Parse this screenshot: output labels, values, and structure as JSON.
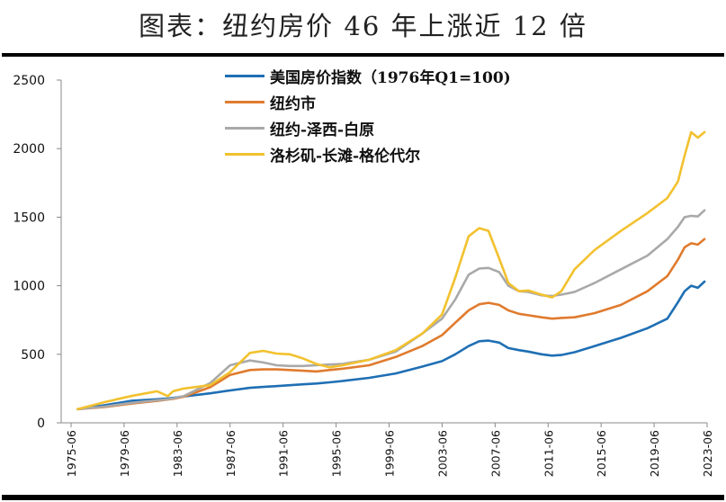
{
  "chart_data": {
    "type": "line",
    "title": "图表：纽约房价 46 年上涨近 12 倍",
    "xlabel": "",
    "ylabel": "",
    "ylim": [
      0,
      2500
    ],
    "yticks": [
      "0",
      "500",
      "1000",
      "1500",
      "2000",
      "2500"
    ],
    "xticks": [
      "1975-06",
      "1979-06",
      "1983-06",
      "1987-06",
      "1991-06",
      "1995-06",
      "1999-06",
      "2003-06",
      "2007-06",
      "2011-06",
      "2015-06",
      "2019-06",
      "2023-06"
    ],
    "xlim": [
      1975.5,
      2023.5
    ],
    "grid": false,
    "legend_position": "top-center",
    "x": [
      1976.0,
      1978.0,
      1980.0,
      1982.0,
      1982.8,
      1983.2,
      1984.0,
      1986.0,
      1987.5,
      1989.0,
      1990.0,
      1991.0,
      1992.0,
      1993.0,
      1994.0,
      1995.0,
      1996.0,
      1998.0,
      2000.0,
      2002.0,
      2003.5,
      2004.5,
      2005.5,
      2006.3,
      2007.0,
      2007.8,
      2008.5,
      2009.3,
      2010.0,
      2011.0,
      2011.8,
      2012.5,
      2013.5,
      2015.0,
      2017.0,
      2019.0,
      2020.5,
      2021.3,
      2021.8,
      2022.3,
      2022.8,
      2023.3
    ],
    "series": [
      {
        "name": "美国房价指数（1976年Q1=100)",
        "color": "#1f6fb4",
        "values": [
          100,
          128,
          160,
          172,
          178,
          182,
          192,
          215,
          236,
          255,
          262,
          268,
          274,
          281,
          287,
          295,
          305,
          328,
          360,
          410,
          450,
          500,
          560,
          595,
          600,
          585,
          545,
          530,
          520,
          500,
          490,
          495,
          515,
          560,
          620,
          690,
          760,
          880,
          960,
          1000,
          985,
          1030
        ]
      },
      {
        "name": "纽约市",
        "color": "#e07b2e",
        "values": [
          100,
          115,
          140,
          160,
          170,
          175,
          190,
          260,
          350,
          385,
          390,
          390,
          385,
          380,
          375,
          385,
          395,
          420,
          480,
          560,
          640,
          730,
          820,
          865,
          875,
          860,
          820,
          795,
          785,
          770,
          760,
          765,
          770,
          800,
          860,
          960,
          1070,
          1190,
          1280,
          1310,
          1300,
          1340
        ]
      },
      {
        "name": "纽约-泽西-白原",
        "color": "#a9a9a9",
        "values": [
          100,
          118,
          145,
          165,
          172,
          178,
          195,
          290,
          420,
          455,
          440,
          420,
          415,
          415,
          420,
          425,
          430,
          460,
          520,
          650,
          760,
          900,
          1080,
          1125,
          1130,
          1100,
          1000,
          960,
          955,
          930,
          925,
          935,
          955,
          1020,
          1120,
          1220,
          1340,
          1430,
          1500,
          1510,
          1505,
          1550
        ]
      },
      {
        "name": "洛杉矶-长滩-格伦代尔",
        "color": "#f2c12e",
        "values": [
          100,
          150,
          195,
          230,
          195,
          230,
          250,
          275,
          370,
          510,
          525,
          505,
          500,
          470,
          430,
          405,
          420,
          460,
          530,
          650,
          790,
          1060,
          1360,
          1420,
          1400,
          1200,
          1020,
          960,
          965,
          935,
          915,
          960,
          1120,
          1260,
          1400,
          1530,
          1640,
          1760,
          1950,
          2120,
          2080,
          2120
        ]
      }
    ]
  }
}
